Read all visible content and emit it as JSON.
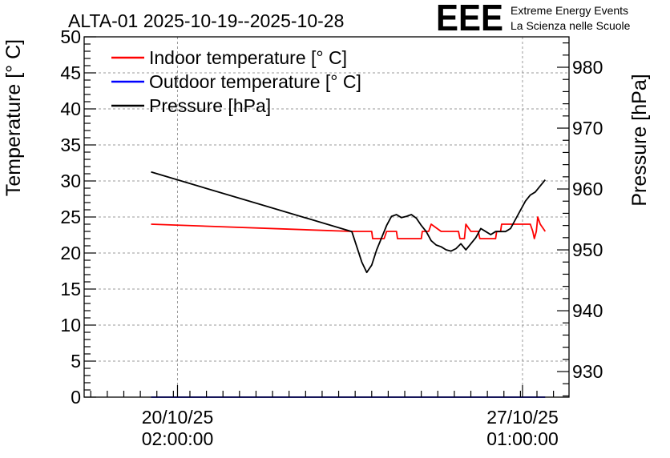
{
  "chart_data": {
    "type": "line",
    "title": "ALTA-01 2025-10-19--2025-10-28",
    "logo": {
      "text": "EEE",
      "line1": "Extreme Energy Events",
      "line2": "La Scienza nelle Scuole",
      "color": "#1a1aff"
    },
    "ylabel": "Temperature [° C]",
    "y2label": "Pressure [hPa]",
    "ylim": [
      0,
      50
    ],
    "y2lim": [
      925.8,
      985.0
    ],
    "y_ticks": [
      0,
      5,
      10,
      15,
      20,
      25,
      30,
      35,
      40,
      45,
      50
    ],
    "y2_ticks": [
      930,
      940,
      950,
      960,
      970,
      980
    ],
    "x_unit": "days since 2025-10-19 00:00",
    "xlim": [
      -0.8,
      8.98
    ],
    "x_ticks": [
      {
        "x": 1.083,
        "date": "20/10/25",
        "time": "02:00:00"
      },
      {
        "x": 8.042,
        "date": "27/10/25",
        "time": "01:00:00"
      }
    ],
    "grid": true,
    "legend_position": "top-left",
    "series": [
      {
        "name": "Indoor temperature [° C]",
        "axis": "left",
        "color": "#ff0000",
        "x": [
          0.55,
          4.6,
          4.62,
          5.0,
          5.02,
          5.25,
          5.3,
          5.5,
          5.52,
          6.0,
          6.02,
          6.15,
          6.2,
          6.4,
          6.42,
          6.75,
          6.78,
          6.87,
          6.9,
          7.0,
          7.02,
          7.15,
          7.18,
          7.5,
          7.52,
          7.6,
          7.62,
          7.75,
          7.8,
          8.2,
          8.25,
          8.28,
          8.32,
          8.35,
          8.4,
          8.5
        ],
        "values": [
          24,
          23,
          23,
          23,
          22,
          22,
          23,
          23,
          22,
          22,
          23,
          23,
          24,
          23,
          23,
          23,
          22,
          22,
          24,
          23,
          23,
          23,
          22,
          22,
          23,
          23,
          24,
          24,
          24,
          24,
          23,
          22,
          23,
          25,
          24,
          23
        ]
      },
      {
        "name": "Outdoor temperature [° C]",
        "axis": "left",
        "color": "#0000ff",
        "x": [
          0.55,
          8.5
        ],
        "values": [
          0,
          0
        ]
      },
      {
        "name": "Pressure [hPa]",
        "axis": "right",
        "color": "#000000",
        "x": [
          0.55,
          4.6,
          4.7,
          4.8,
          4.9,
          5.0,
          5.1,
          5.2,
          5.3,
          5.4,
          5.5,
          5.6,
          5.7,
          5.8,
          5.9,
          6.0,
          6.1,
          6.2,
          6.3,
          6.4,
          6.5,
          6.6,
          6.7,
          6.8,
          6.9,
          7.0,
          7.1,
          7.2,
          7.3,
          7.4,
          7.5,
          7.6,
          7.7,
          7.8,
          7.9,
          8.0,
          8.1,
          8.2,
          8.3,
          8.4,
          8.5
        ],
        "values": [
          962.8,
          953.0,
          950.5,
          948.0,
          946.3,
          947.5,
          950.0,
          952.0,
          954.0,
          955.5,
          955.8,
          955.3,
          955.5,
          955.8,
          955.2,
          954.0,
          953.0,
          951.5,
          950.8,
          950.5,
          950.0,
          949.8,
          950.2,
          951.0,
          950.0,
          951.0,
          952.0,
          953.5,
          953.0,
          952.5,
          953.0,
          953.0,
          953.0,
          953.5,
          955.0,
          956.5,
          958.0,
          959.0,
          959.5,
          960.5,
          961.5
        ]
      }
    ]
  }
}
